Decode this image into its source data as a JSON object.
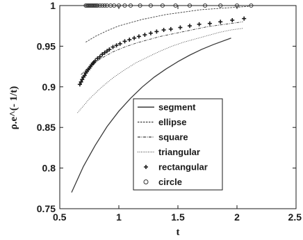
{
  "chart_data": {
    "type": "line",
    "xlabel": "t",
    "ylabel": "ρ.e^(- 1/t)",
    "xlim": [
      0.5,
      2.5
    ],
    "ylim": [
      0.75,
      1
    ],
    "xticks": [
      0.5,
      1,
      1.5,
      2,
      2.5
    ],
    "xtick_labels": [
      "0.5",
      "1",
      "1.5",
      "2",
      "2.5"
    ],
    "yticks": [
      0.75,
      0.8,
      0.85,
      0.9,
      0.95,
      1
    ],
    "ytick_labels": [
      "0.75",
      "0.8",
      "0.85",
      "0.9",
      "0.95",
      "1"
    ],
    "grid": false,
    "legend_position": "center-right",
    "series": [
      {
        "name": "segment",
        "style": "solid",
        "x": [
          0.6,
          0.7,
          0.8,
          0.9,
          1.0,
          1.1,
          1.2,
          1.3,
          1.4,
          1.5,
          1.6,
          1.7,
          1.8,
          1.95
        ],
        "y": [
          0.77,
          0.802,
          0.828,
          0.851,
          0.87,
          0.886,
          0.9,
          0.912,
          0.922,
          0.931,
          0.939,
          0.946,
          0.952,
          0.96
        ]
      },
      {
        "name": "ellipse",
        "style": "dashed-fine",
        "x": [
          0.72,
          0.8,
          0.9,
          1.0,
          1.1,
          1.2,
          1.3,
          1.4,
          1.5,
          1.6,
          1.7,
          1.8,
          1.9,
          2.0,
          2.1
        ],
        "y": [
          0.955,
          0.962,
          0.969,
          0.975,
          0.979,
          0.983,
          0.986,
          0.989,
          0.991,
          0.993,
          0.995,
          0.996,
          0.997,
          0.998,
          0.999
        ]
      },
      {
        "name": "square",
        "style": "dash-dot",
        "x": [
          0.68,
          0.75,
          0.85,
          0.95,
          1.05,
          1.15,
          1.25,
          1.35,
          1.45,
          1.55,
          1.65,
          1.75,
          1.85,
          1.95,
          2.05
        ],
        "y": [
          0.915,
          0.925,
          0.935,
          0.943,
          0.949,
          0.954,
          0.958,
          0.962,
          0.965,
          0.968,
          0.971,
          0.974,
          0.976,
          0.978,
          0.98
        ]
      },
      {
        "name": "triangular",
        "style": "dotted",
        "x": [
          0.65,
          0.75,
          0.85,
          0.95,
          1.05,
          1.15,
          1.25,
          1.35,
          1.45,
          1.55,
          1.65,
          1.75,
          1.85,
          1.95,
          2.05
        ],
        "y": [
          0.868,
          0.885,
          0.899,
          0.911,
          0.921,
          0.93,
          0.937,
          0.944,
          0.95,
          0.955,
          0.959,
          0.963,
          0.967,
          0.97,
          0.972
        ]
      },
      {
        "name": "rectangular",
        "style": "markers-plus",
        "x": [
          0.67,
          0.68,
          0.69,
          0.7,
          0.71,
          0.72,
          0.73,
          0.74,
          0.75,
          0.76,
          0.77,
          0.78,
          0.79,
          0.8,
          0.82,
          0.84,
          0.86,
          0.88,
          0.9,
          0.92,
          0.95,
          0.98,
          1.01,
          1.05,
          1.09,
          1.13,
          1.17,
          1.22,
          1.27,
          1.32,
          1.38,
          1.44,
          1.52,
          1.6,
          1.68,
          1.77,
          1.86,
          1.96,
          2.06
        ],
        "y": [
          0.903,
          0.906,
          0.909,
          0.912,
          0.914,
          0.917,
          0.919,
          0.921,
          0.923,
          0.925,
          0.927,
          0.929,
          0.93,
          0.932,
          0.935,
          0.937,
          0.94,
          0.942,
          0.944,
          0.946,
          0.949,
          0.951,
          0.953,
          0.956,
          0.958,
          0.96,
          0.962,
          0.964,
          0.966,
          0.968,
          0.97,
          0.971,
          0.973,
          0.975,
          0.977,
          0.978,
          0.98,
          0.982,
          0.984
        ]
      },
      {
        "name": "circle",
        "style": "markers-circle",
        "x": [
          0.72,
          0.73,
          0.74,
          0.75,
          0.76,
          0.77,
          0.78,
          0.79,
          0.8,
          0.81,
          0.82,
          0.84,
          0.86,
          0.88,
          0.9,
          0.93,
          0.96,
          1.0,
          1.05,
          1.1,
          1.18,
          1.27,
          1.37,
          1.48,
          1.6,
          1.73,
          1.86,
          2.0,
          2.12
        ],
        "y": [
          1,
          1,
          1,
          1,
          1,
          1,
          1,
          1,
          1,
          1,
          1,
          1,
          1,
          1,
          1,
          1,
          1,
          1,
          1,
          1,
          1,
          1,
          1,
          1,
          1,
          1,
          1,
          1,
          1
        ]
      }
    ]
  }
}
